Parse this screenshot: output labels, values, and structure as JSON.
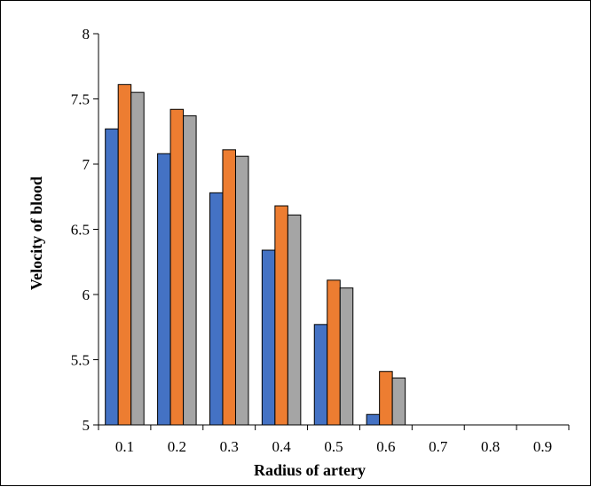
{
  "chart_data": {
    "type": "bar",
    "title": "",
    "xlabel": "Radius of artery",
    "ylabel": "Velocity of blood",
    "categories": [
      "0.1",
      "0.2",
      "0.3",
      "0.4",
      "0.5",
      "0.6",
      "0.7",
      "0.8",
      "0.9"
    ],
    "ylim": [
      5,
      8
    ],
    "yticks": [
      "5",
      "5.5",
      "6",
      "6.5",
      "7",
      "7.5",
      "8"
    ],
    "grid": false,
    "legend": "none",
    "series": [
      {
        "color": "#4472c4",
        "values": [
          7.27,
          7.08,
          6.78,
          6.34,
          5.77,
          5.08,
          5.0,
          5.0,
          5.0
        ]
      },
      {
        "color": "#ed7d31",
        "values": [
          7.61,
          7.42,
          7.11,
          6.68,
          6.11,
          5.41,
          5.0,
          5.0,
          5.0
        ]
      },
      {
        "color": "#a5a5a5",
        "values": [
          7.55,
          7.37,
          7.06,
          6.61,
          6.05,
          5.36,
          5.0,
          5.0,
          5.0
        ]
      }
    ]
  }
}
